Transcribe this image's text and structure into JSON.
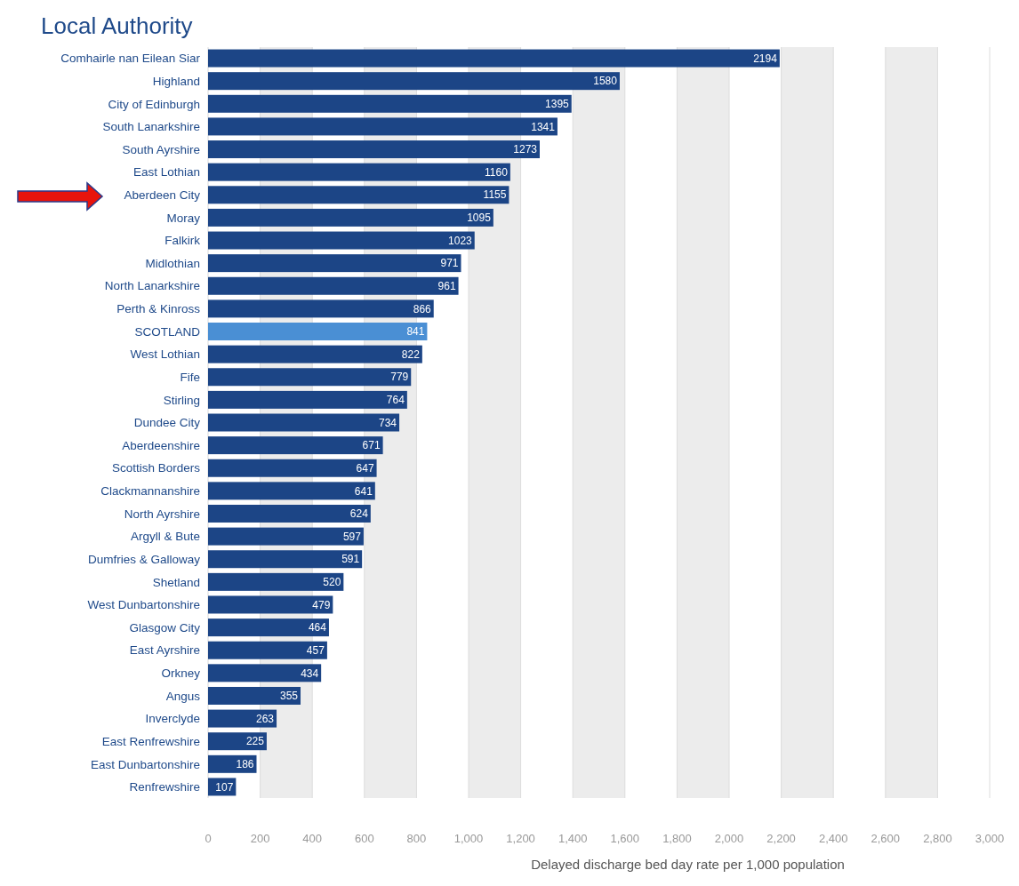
{
  "chart_data": {
    "type": "bar",
    "orientation": "horizontal",
    "title": "Local Authority",
    "xlabel": "Delayed discharge bed day rate per 1,000 population",
    "categories": [
      "Comhairle nan Eilean Siar",
      "Highland",
      "City of Edinburgh",
      "South Lanarkshire",
      "South Ayrshire",
      "East Lothian",
      "Aberdeen City",
      "Moray",
      "Falkirk",
      "Midlothian",
      "North Lanarkshire",
      "Perth & Kinross",
      "SCOTLAND",
      "West Lothian",
      "Fife",
      "Stirling",
      "Dundee City",
      "Aberdeenshire",
      "Scottish Borders",
      "Clackmannanshire",
      "North Ayrshire",
      "Argyll & Bute",
      "Dumfries & Galloway",
      "Shetland",
      "West Dunbartonshire",
      "Glasgow City",
      "East Ayrshire",
      "Orkney",
      "Angus",
      "Inverclyde",
      "East Renfrewshire",
      "East Dunbartonshire",
      "Renfrewshire"
    ],
    "values": [
      2194,
      1580,
      1395,
      1341,
      1273,
      1160,
      1155,
      1095,
      1023,
      971,
      961,
      866,
      841,
      822,
      779,
      764,
      734,
      671,
      647,
      641,
      624,
      597,
      591,
      520,
      479,
      464,
      457,
      434,
      355,
      263,
      225,
      186,
      107
    ],
    "colors": [
      "#1c4586",
      "#1c4586",
      "#1c4586",
      "#1c4586",
      "#1c4586",
      "#1c4586",
      "#1c4586",
      "#1c4586",
      "#1c4586",
      "#1c4586",
      "#1c4586",
      "#1c4586",
      "#4a8fd4",
      "#1c4586",
      "#1c4586",
      "#1c4586",
      "#1c4586",
      "#1c4586",
      "#1c4586",
      "#1c4586",
      "#1c4586",
      "#1c4586",
      "#1c4586",
      "#1c4586",
      "#1c4586",
      "#1c4586",
      "#1c4586",
      "#1c4586",
      "#1c4586",
      "#1c4586",
      "#1c4586",
      "#1c4586",
      "#1c4586"
    ],
    "xlim": [
      0,
      3000
    ],
    "xticks": [
      0,
      200,
      400,
      600,
      800,
      {
        "value": 1000,
        "label": "1,000"
      },
      {
        "value": 1200,
        "label": "1,200"
      },
      {
        "value": 1400,
        "label": "1,400"
      },
      {
        "value": 1600,
        "label": "1,600"
      },
      {
        "value": 1800,
        "label": "1,800"
      },
      {
        "value": 2000,
        "label": "2,000"
      },
      {
        "value": 2200,
        "label": "2,200"
      },
      {
        "value": 2400,
        "label": "2,400"
      },
      {
        "value": 2600,
        "label": "2,600"
      },
      {
        "value": 2800,
        "label": "2,800"
      },
      {
        "value": 3000,
        "label": "3,000"
      }
    ],
    "grid": "x",
    "data_labels": true
  }
}
